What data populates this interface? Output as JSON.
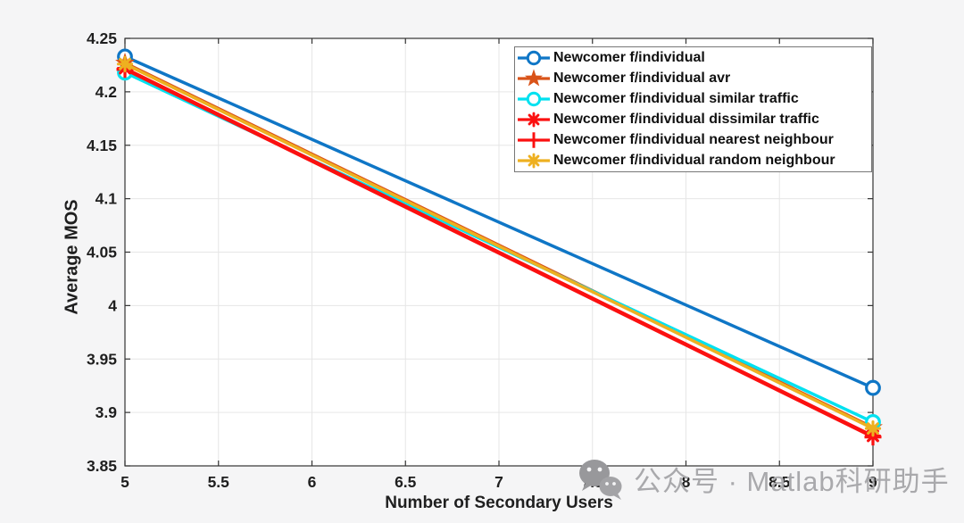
{
  "chart_data": {
    "type": "line",
    "title": "",
    "xlabel": "Number of Secondary Users",
    "ylabel": "Average MOS",
    "x": [
      5,
      9
    ],
    "series": [
      {
        "name": "Newcomer f/individual",
        "color": "#0F76C6",
        "marker": "open-circle",
        "values": [
          4.233,
          3.923
        ]
      },
      {
        "name": "Newcomer f/individual avr",
        "color": "#D95319",
        "marker": "filled-star",
        "values": [
          4.227,
          3.886
        ]
      },
      {
        "name": "Newcomer f/individual similar traffic",
        "color": "#00E1F0",
        "marker": "open-circle",
        "values": [
          4.218,
          3.891
        ]
      },
      {
        "name": "Newcomer f/individual dissimilar traffic",
        "color": "#FB1010",
        "marker": "asterisk-burst",
        "values": [
          4.222,
          3.878
        ]
      },
      {
        "name": "Newcomer f/individual nearest neighbour",
        "color": "#FB1010",
        "marker": "plus",
        "values": [
          4.221,
          3.877
        ]
      },
      {
        "name": "Newcomer f/individual random neighbour",
        "color": "#EEB020",
        "marker": "asterisk-burst",
        "values": [
          4.226,
          3.885
        ]
      }
    ],
    "xlim": [
      5,
      9
    ],
    "ylim": [
      3.85,
      4.25
    ],
    "xticks": [
      5,
      5.5,
      6,
      6.5,
      7,
      7.5,
      8,
      8.5,
      9
    ],
    "xtick_labels": [
      "5",
      "5.5",
      "6",
      "6.5",
      "7",
      "7.5",
      "8",
      "8.5",
      "9"
    ],
    "yticks": [
      3.85,
      3.9,
      3.95,
      4,
      4.05,
      4.1,
      4.15,
      4.2,
      4.25
    ],
    "ytick_labels": [
      "3.85",
      "3.9",
      "3.95",
      "4",
      "4.05",
      "4.1",
      "4.15",
      "4.2",
      "4.25"
    ],
    "grid": true,
    "legend_position": "top-right"
  },
  "watermark": {
    "icon": "wechat-icon",
    "text": "公众号 · Matlab科研助手"
  },
  "style_colors": {
    "figure_background": "#f5f5f6",
    "plot_background": "#ffffff",
    "grid_color": "#e6e6e6",
    "axis_color": "#333333",
    "tick_label_color": "#1f1f1f",
    "watermark_color": "#a9a9ac",
    "watermark_icon_color": "#98989b"
  }
}
